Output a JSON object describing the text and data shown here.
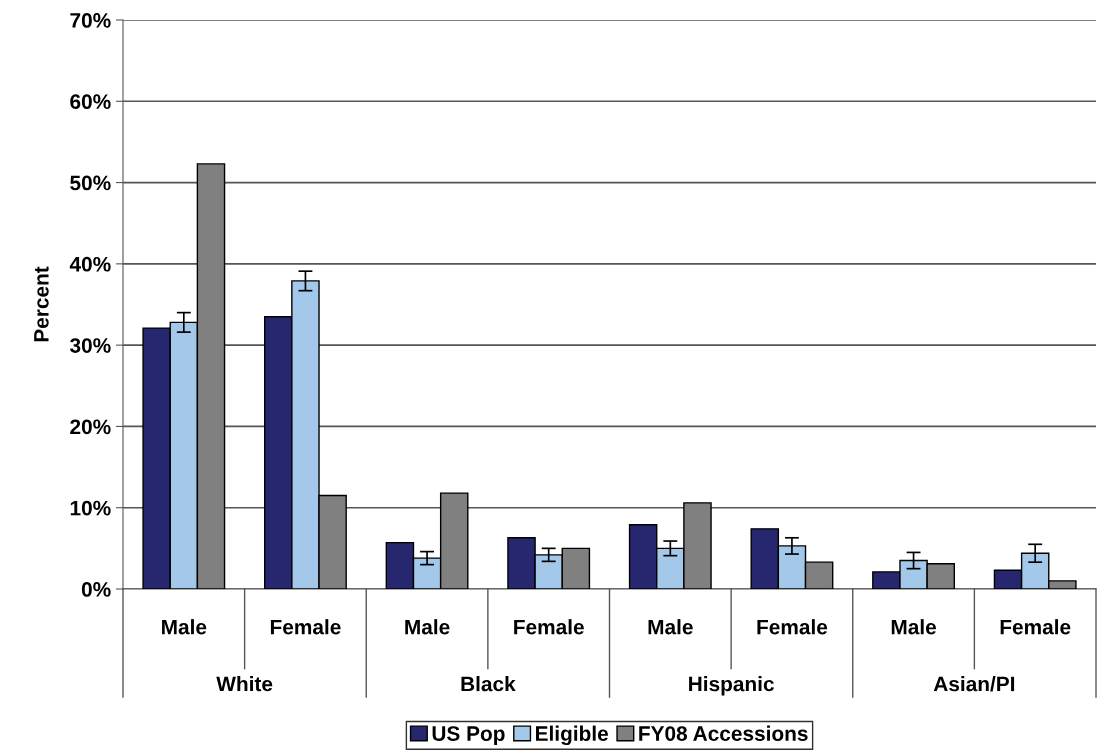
{
  "chart_data": {
    "type": "bar",
    "ylabel": "Percent",
    "categories": [
      "Male",
      "Female",
      "Male",
      "Female",
      "Male",
      "Female",
      "Male",
      "Female"
    ],
    "annotations": [
      "White",
      "Black",
      "Hispanic",
      "Asian/PI"
    ],
    "series": [
      {
        "name": "US Pop",
        "color": "#26276f",
        "values": [
          32.1,
          33.5,
          5.7,
          6.3,
          7.9,
          7.4,
          2.1,
          2.3
        ]
      },
      {
        "name": "Eligible",
        "color": "#a3c8ea",
        "values": [
          32.8,
          37.9,
          3.8,
          4.2,
          5.0,
          5.3,
          3.5,
          4.4
        ],
        "errors": [
          1.2,
          1.2,
          0.8,
          0.8,
          0.9,
          1.0,
          1.0,
          1.1
        ]
      },
      {
        "name": "FY08 Accessions",
        "color": "#808080",
        "values": [
          52.3,
          11.5,
          11.8,
          5.0,
          10.6,
          3.3,
          3.1,
          1.0
        ]
      }
    ],
    "ylim": [
      0,
      70
    ],
    "yticks": [
      {
        "value": 0,
        "label": "0%"
      },
      {
        "value": 10,
        "label": "10%"
      },
      {
        "value": 20,
        "label": "20%"
      },
      {
        "value": 30,
        "label": "30%"
      },
      {
        "value": 40,
        "label": "40%"
      },
      {
        "value": 50,
        "label": "50%"
      },
      {
        "value": 60,
        "label": "60%"
      },
      {
        "value": 70,
        "label": "70%"
      }
    ],
    "grid": "y",
    "legend": "bottom"
  }
}
